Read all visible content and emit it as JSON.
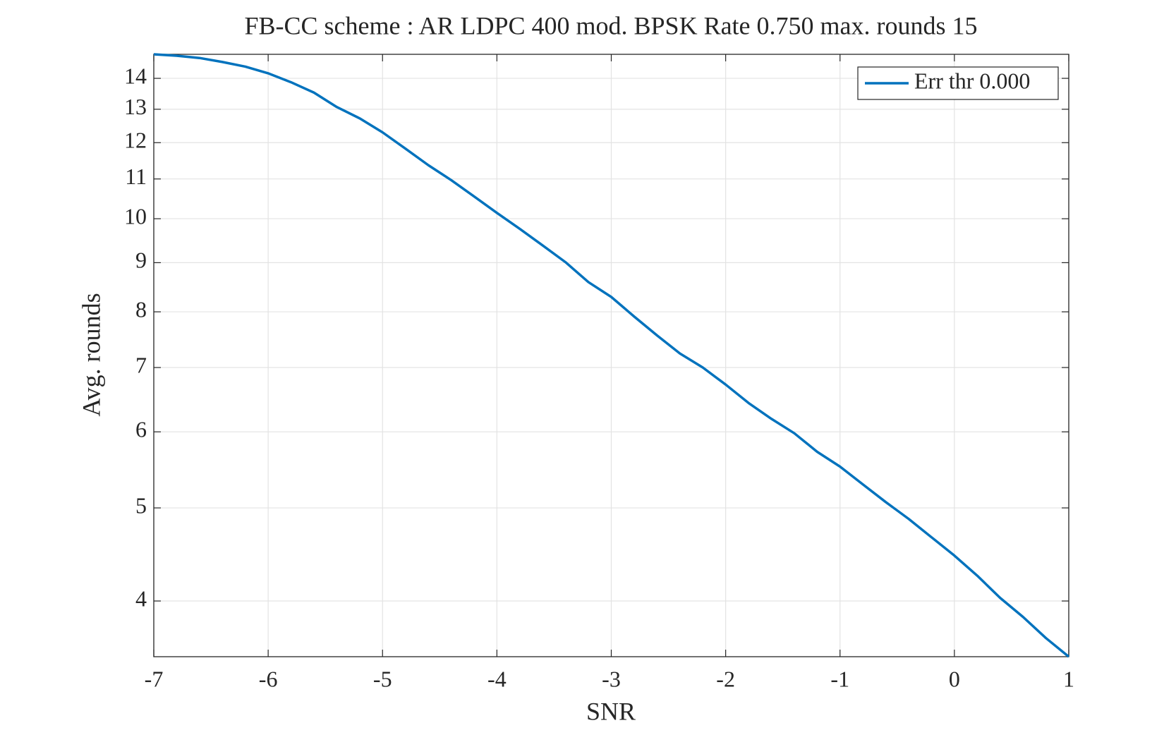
{
  "chart_data": {
    "type": "line",
    "title": "FB-CC scheme : AR LDPC 400 mod. BPSK Rate 0.750 max. rounds 15",
    "xlabel": "SNR",
    "ylabel": "Avg. rounds",
    "x": [
      -7,
      -6.8,
      -6.6,
      -6.4,
      -6.2,
      -6,
      -5.8,
      -5.6,
      -5.4,
      -5.2,
      -5,
      -4.8,
      -4.6,
      -4.4,
      -4.2,
      -4,
      -3.8,
      -3.6,
      -3.4,
      -3.2,
      -3,
      -2.8,
      -2.6,
      -2.4,
      -2.2,
      -2,
      -1.8,
      -1.6,
      -1.4,
      -1.2,
      -1,
      -0.8,
      -0.6,
      -0.4,
      -0.2,
      0,
      0.2,
      0.4,
      0.6,
      0.8,
      1
    ],
    "series": [
      {
        "name": "Err thr 0.000",
        "color": "#0072bd",
        "values": [
          14.83,
          14.78,
          14.7,
          14.56,
          14.4,
          14.17,
          13.87,
          13.53,
          13.07,
          12.72,
          12.3,
          11.83,
          11.37,
          10.97,
          10.55,
          10.14,
          9.76,
          9.38,
          9.01,
          8.59,
          8.29,
          7.91,
          7.56,
          7.24,
          7.0,
          6.72,
          6.43,
          6.19,
          5.98,
          5.72,
          5.52,
          5.29,
          5.07,
          4.87,
          4.66,
          4.46,
          4.25,
          4.03,
          3.85,
          3.66,
          3.5
        ]
      }
    ],
    "xlim": [
      -7,
      1
    ],
    "xticks": [
      -7,
      -6,
      -5,
      -4,
      -3,
      -2,
      -1,
      0,
      1
    ],
    "ylim": [
      3.5,
      14.83
    ],
    "yticks": [
      4,
      5,
      6,
      7,
      8,
      9,
      10,
      11,
      12,
      13,
      14
    ],
    "yscale": "log",
    "grid": true,
    "legend": "top-right"
  }
}
